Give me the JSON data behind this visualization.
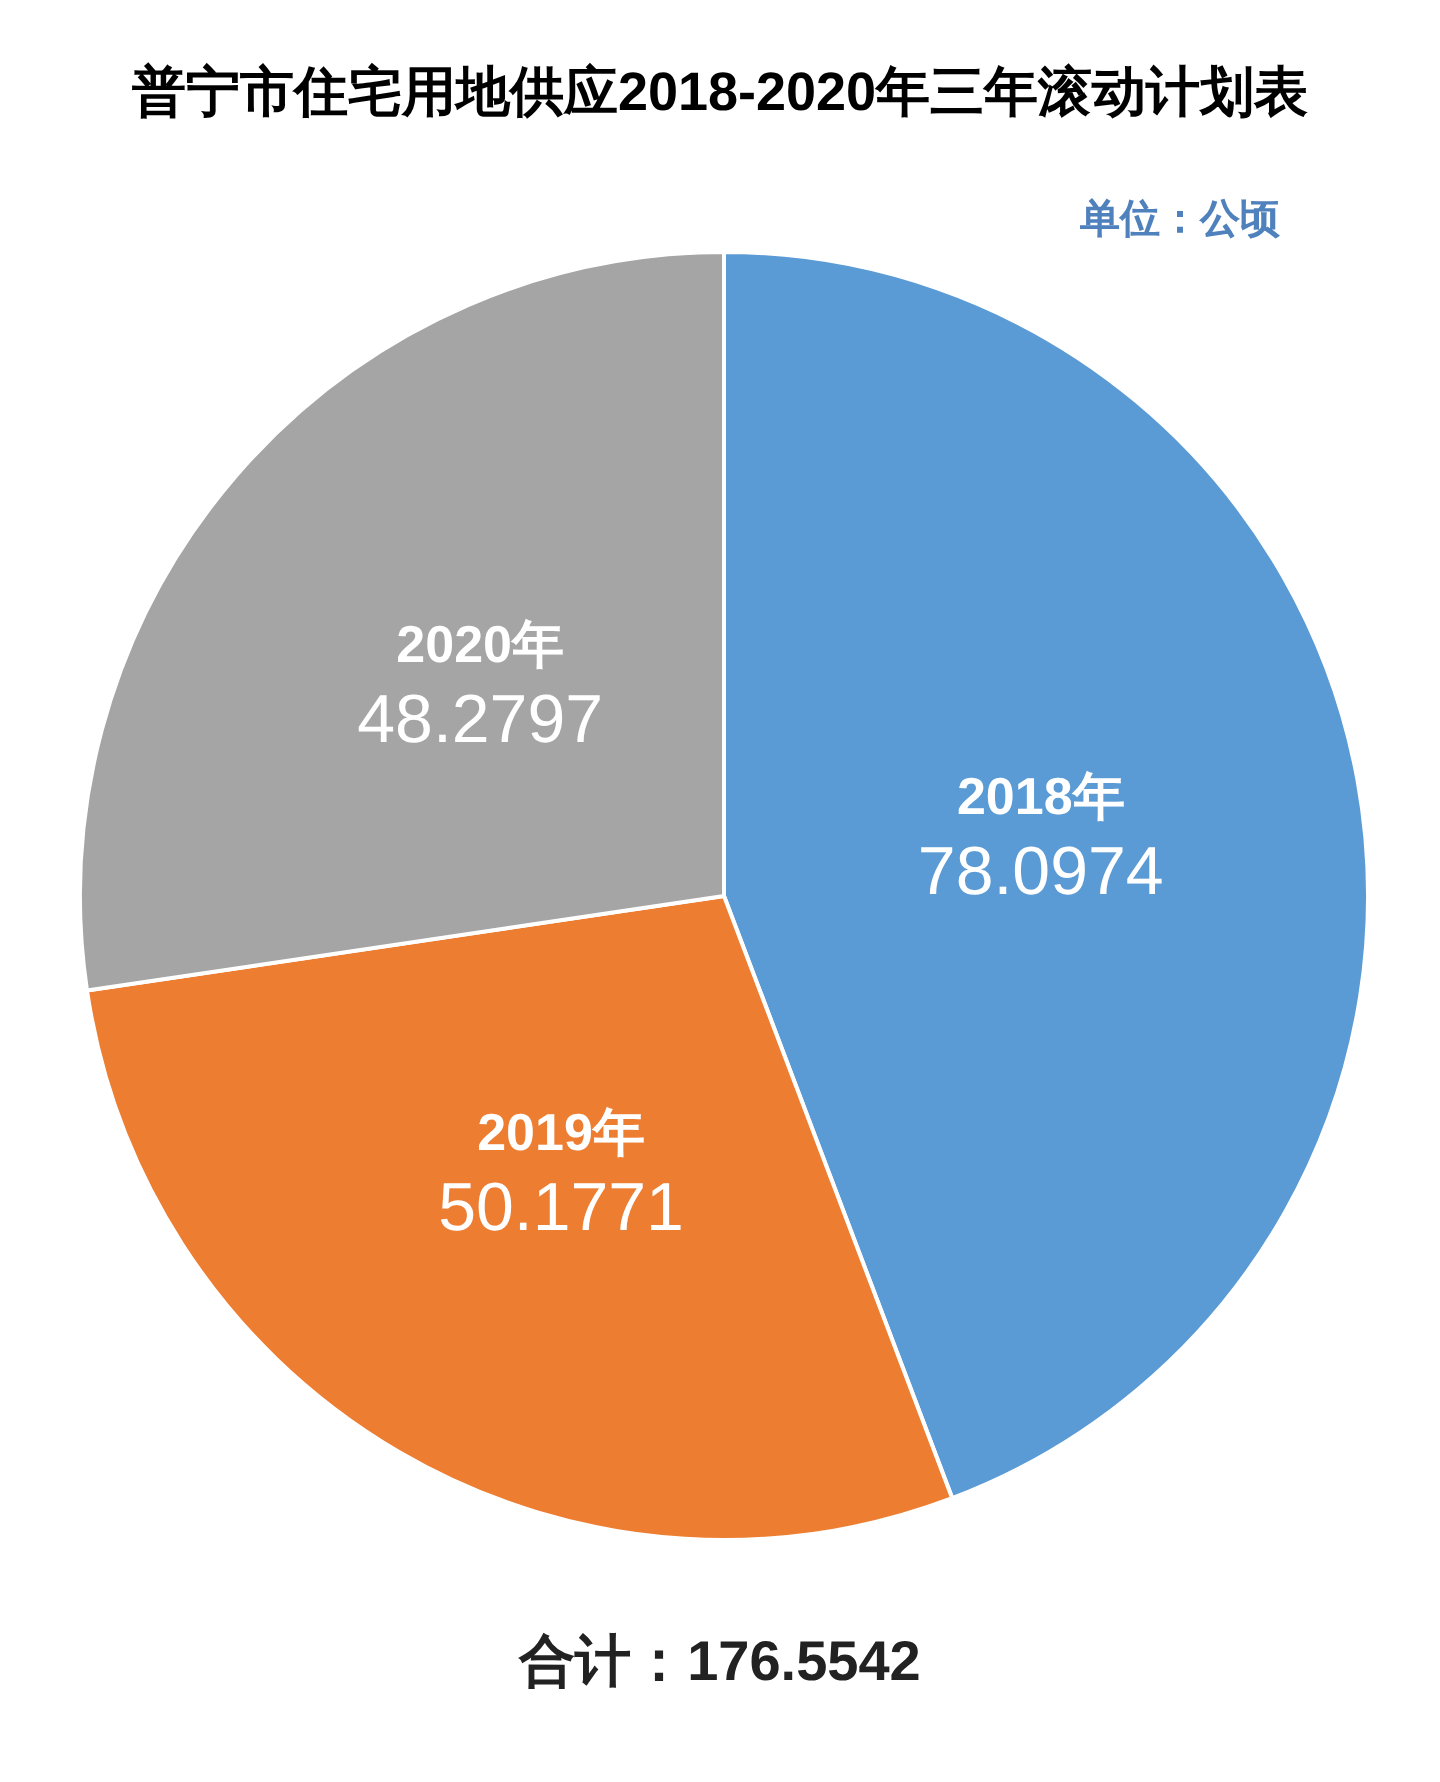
{
  "chart_data": {
    "type": "pie",
    "title": "普宁市住宅用地供应2018-2020年三年滚动计划表",
    "categories": [
      "2018年",
      "2019年",
      "2020年"
    ],
    "values": [
      78.0974,
      50.1771,
      48.2797
    ],
    "colors": [
      "#5b9bd5",
      "#ed7d31",
      "#a5a5a5"
    ],
    "data_labels": true,
    "annotations": [
      "单位：公顷",
      "合计：176.5542"
    ]
  }
}
